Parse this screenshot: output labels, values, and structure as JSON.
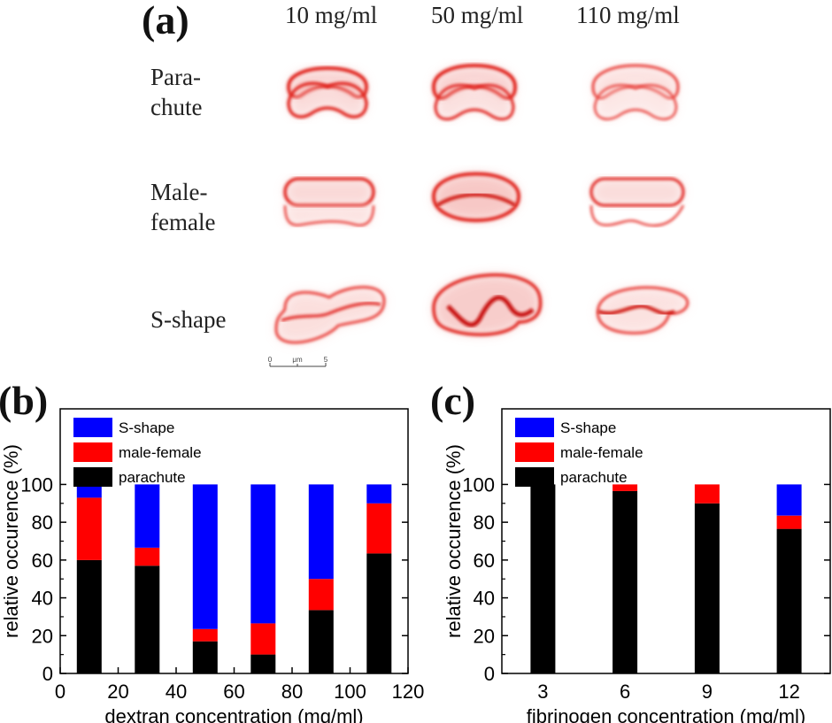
{
  "panel_a": {
    "label": "(a)",
    "columns": [
      "10 mg/ml",
      "50 mg/ml",
      "110 mg/ml"
    ],
    "rows": [
      {
        "line1": "Para-",
        "line2": "chute"
      },
      {
        "line1": "Male-",
        "line2": "female"
      },
      {
        "line1": "S-shape",
        "line2": ""
      }
    ],
    "scale_bar": {
      "start": "0",
      "unit": "μm",
      "end": "5"
    },
    "cell_color": "#e0201a"
  },
  "chart_data": [
    {
      "type": "bar",
      "stacked": true,
      "panel_label": "(b)",
      "x": [
        10,
        30,
        50,
        70,
        90,
        110
      ],
      "series": [
        {
          "name": "parachute",
          "color": "#000000",
          "values": [
            60,
            57,
            17,
            10,
            33.5,
            63.5
          ]
        },
        {
          "name": "male-female",
          "color": "#ff0000",
          "values": [
            33,
            9.5,
            6.5,
            16.5,
            16.5,
            26.5
          ]
        },
        {
          "name": "S-shape",
          "color": "#0000ff",
          "values": [
            7,
            33.5,
            76.5,
            73.5,
            50,
            10
          ]
        }
      ],
      "xlabel": "dextran concentration (mg/ml)",
      "ylabel": "relative occurence (%)",
      "xlim": [
        0,
        120
      ],
      "ylim": [
        0,
        140
      ],
      "xticks": [
        0,
        20,
        40,
        60,
        80,
        100,
        120
      ],
      "yticks": [
        0,
        20,
        40,
        60,
        80,
        100
      ],
      "legend": [
        "S-shape",
        "male-female",
        "parachute"
      ],
      "legend_position": "top-left",
      "grid": false
    },
    {
      "type": "bar",
      "stacked": true,
      "panel_label": "(c)",
      "categories": [
        "3",
        "6",
        "9",
        "12"
      ],
      "series": [
        {
          "name": "parachute",
          "color": "#000000",
          "values": [
            100,
            96.5,
            90,
            76.5
          ]
        },
        {
          "name": "male-female",
          "color": "#ff0000",
          "values": [
            0,
            3.5,
            10,
            7
          ]
        },
        {
          "name": "S-shape",
          "color": "#0000ff",
          "values": [
            0,
            0,
            0,
            16.5
          ]
        }
      ],
      "xlabel": "fibrinogen concentration (mg/ml)",
      "ylabel": "relative occurence (%)",
      "ylim": [
        0,
        140
      ],
      "yticks": [
        0,
        20,
        40,
        60,
        80,
        100
      ],
      "legend": [
        "S-shape",
        "male-female",
        "parachute"
      ],
      "legend_position": "top-left",
      "grid": false
    }
  ]
}
